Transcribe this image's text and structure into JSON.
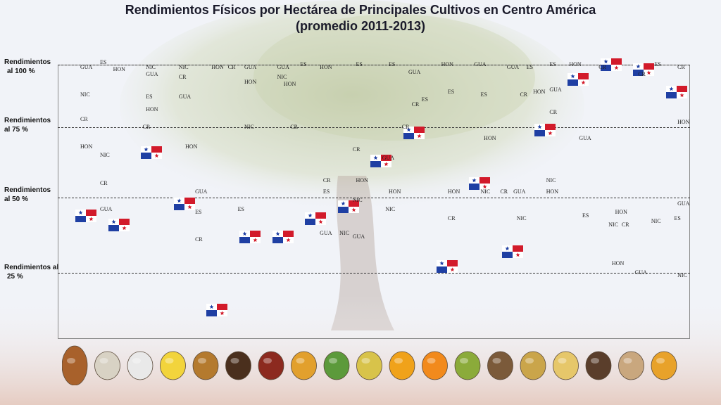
{
  "title_line1": "Rendimientos Físicos  por Hectárea de Principales Cultivos en Centro América",
  "title_line2": "(promedio 2011-2013)",
  "y_labels": [
    {
      "text_lines": [
        "Rendimientos",
        "al 100 %"
      ],
      "level": 100
    },
    {
      "text_lines": [
        "Rendimientos",
        "al 75 %"
      ],
      "level": 75
    },
    {
      "text_lines": [
        "Rendimientos",
        "al 50 %"
      ],
      "level": 50
    },
    {
      "text_lines": [
        "Rendimientos al",
        "25 %"
      ],
      "level": 25
    }
  ],
  "colors": {
    "flag_red": "#d21a2a",
    "flag_blue": "#1f3fa3",
    "grid_line": "#333333",
    "title": "#1a1a2a"
  },
  "footer_icons": [
    "cacao-icon",
    "rice-icon",
    "sugar-icon",
    "banana-icon",
    "beans-icon",
    "coffee-icon",
    "red-beans-icon",
    "pineapple-fruit-icon",
    "vegetables-icon",
    "corn-icon",
    "mango-icon",
    "orange-icon",
    "plantain-icon",
    "coconut-icon",
    "potato-icon",
    "melon-icon",
    "yam-icon",
    "cassava-icon",
    "pineapple-icon"
  ],
  "chart_data": {
    "type": "scatter",
    "title": "Rendimientos Físicos  por Hectárea de Principales Cultivos en Centro América (promedio 2011-2013)",
    "y_unit": "% del rendimiento máximo",
    "ylim": [
      0,
      100
    ],
    "reference_levels": [
      100,
      75,
      50,
      25
    ],
    "x_categories": 19,
    "flags": [
      {
        "x": 1,
        "y": 44
      },
      {
        "x": 2,
        "y": 41
      },
      {
        "x": 3,
        "y": 66
      },
      {
        "x": 4,
        "y": 48
      },
      {
        "x": 5,
        "y": 11
      },
      {
        "x": 6,
        "y": 37
      },
      {
        "x": 7,
        "y": 37
      },
      {
        "x": 8,
        "y": 43
      },
      {
        "x": 9,
        "y": 47
      },
      {
        "x": 10,
        "y": 63
      },
      {
        "x": 11,
        "y": 73
      },
      {
        "x": 12,
        "y": 27
      },
      {
        "x": 13,
        "y": 55
      },
      {
        "x": 14,
        "y": 32
      },
      {
        "x": 15,
        "y": 74
      },
      {
        "x": 16,
        "y": 94
      },
      {
        "x": 17,
        "y": 100
      },
      {
        "x": 18,
        "y": 98
      },
      {
        "x": 19,
        "y": 89
      }
    ],
    "country_labels": [
      {
        "t": "GUA",
        "x": 1,
        "y": 99
      },
      {
        "t": "ES",
        "x": 1.6,
        "y": 101
      },
      {
        "t": "HON",
        "x": 2.0,
        "y": 98
      },
      {
        "t": "NIC",
        "x": 1,
        "y": 88
      },
      {
        "t": "CR",
        "x": 1,
        "y": 78
      },
      {
        "t": "HON",
        "x": 1,
        "y": 68
      },
      {
        "t": "NIC",
        "x": 1.6,
        "y": 65
      },
      {
        "t": "CR",
        "x": 1.6,
        "y": 55
      },
      {
        "t": "GUA",
        "x": 1.6,
        "y": 46
      },
      {
        "t": "NIC",
        "x": 3,
        "y": 99
      },
      {
        "t": "GUA",
        "x": 3,
        "y": 96
      },
      {
        "t": "ES",
        "x": 3,
        "y": 87
      },
      {
        "t": "HON",
        "x": 3,
        "y": 82
      },
      {
        "t": "CR",
        "x": 2.9,
        "y": 75
      },
      {
        "t": "NIC",
        "x": 4,
        "y": 99
      },
      {
        "t": "CR",
        "x": 4,
        "y": 95
      },
      {
        "t": "GUA",
        "x": 4,
        "y": 87
      },
      {
        "t": "HON",
        "x": 4.2,
        "y": 68
      },
      {
        "t": "GUA",
        "x": 4.5,
        "y": 52
      },
      {
        "t": "ES",
        "x": 4.5,
        "y": 45
      },
      {
        "t": "CR",
        "x": 4.5,
        "y": 36
      },
      {
        "t": "HON",
        "x": 5,
        "y": 99
      },
      {
        "t": "CR",
        "x": 5.5,
        "y": 99
      },
      {
        "t": "ES",
        "x": 5.8,
        "y": 46
      },
      {
        "t": "GUA",
        "x": 6,
        "y": 99
      },
      {
        "t": "HON",
        "x": 6,
        "y": 93
      },
      {
        "t": "NIC",
        "x": 6,
        "y": 75
      },
      {
        "t": "GUA",
        "x": 7,
        "y": 99
      },
      {
        "t": "NIC",
        "x": 7,
        "y": 95
      },
      {
        "t": "HON",
        "x": 7.2,
        "y": 92
      },
      {
        "t": "CR",
        "x": 7.4,
        "y": 75
      },
      {
        "t": "ES",
        "x": 7.7,
        "y": 100
      },
      {
        "t": "HON",
        "x": 8.3,
        "y": 99
      },
      {
        "t": "CR",
        "x": 8.4,
        "y": 56
      },
      {
        "t": "ES",
        "x": 8.4,
        "y": 52
      },
      {
        "t": "GUA",
        "x": 8.3,
        "y": 38
      },
      {
        "t": "NIC",
        "x": 8.9,
        "y": 38
      },
      {
        "t": "GUA",
        "x": 9.3,
        "y": 37
      },
      {
        "t": "ES",
        "x": 9.4,
        "y": 100
      },
      {
        "t": "CR",
        "x": 9.3,
        "y": 67
      },
      {
        "t": "HON",
        "x": 9.4,
        "y": 56
      },
      {
        "t": "NIC",
        "x": 9.3,
        "y": 49
      },
      {
        "t": "ES",
        "x": 10.4,
        "y": 100
      },
      {
        "t": "GUA",
        "x": 10.2,
        "y": 64
      },
      {
        "t": "HON",
        "x": 10.4,
        "y": 52
      },
      {
        "t": "NIC",
        "x": 10.3,
        "y": 46
      },
      {
        "t": "CR",
        "x": 10.8,
        "y": 75
      },
      {
        "t": "GUA",
        "x": 11,
        "y": 97
      },
      {
        "t": "CR",
        "x": 11.1,
        "y": 84
      },
      {
        "t": "ES",
        "x": 11.4,
        "y": 86
      },
      {
        "t": "HON",
        "x": 12,
        "y": 100
      },
      {
        "t": "ES",
        "x": 12.2,
        "y": 89
      },
      {
        "t": "HON",
        "x": 12.2,
        "y": 52
      },
      {
        "t": "CR",
        "x": 12.2,
        "y": 43
      },
      {
        "t": "GUA",
        "x": 13,
        "y": 100
      },
      {
        "t": "ES",
        "x": 13.2,
        "y": 88
      },
      {
        "t": "HON",
        "x": 13.3,
        "y": 71
      },
      {
        "t": "NIC",
        "x": 13.2,
        "y": 52
      },
      {
        "t": "CR",
        "x": 13.8,
        "y": 52
      },
      {
        "t": "GUA",
        "x": 14.2,
        "y": 52
      },
      {
        "t": "GUA",
        "x": 14,
        "y": 99
      },
      {
        "t": "ES",
        "x": 14.6,
        "y": 99
      },
      {
        "t": "CR",
        "x": 14.4,
        "y": 88
      },
      {
        "t": "HON",
        "x": 14.8,
        "y": 89
      },
      {
        "t": "NIC",
        "x": 14.3,
        "y": 43
      },
      {
        "t": "HON",
        "x": 15.2,
        "y": 52
      },
      {
        "t": "NIC",
        "x": 15.2,
        "y": 56
      },
      {
        "t": "ES",
        "x": 15.3,
        "y": 100
      },
      {
        "t": "HON",
        "x": 15.9,
        "y": 100
      },
      {
        "t": "GUA",
        "x": 15.3,
        "y": 90
      },
      {
        "t": "CR",
        "x": 15.3,
        "y": 81
      },
      {
        "t": "GUA",
        "x": 16.2,
        "y": 71
      },
      {
        "t": "ES",
        "x": 16.3,
        "y": 44
      },
      {
        "t": "CR",
        "x": 16.8,
        "y": 99
      },
      {
        "t": "HON",
        "x": 17.3,
        "y": 45
      },
      {
        "t": "NIC",
        "x": 17.1,
        "y": 41
      },
      {
        "t": "CR",
        "x": 17.5,
        "y": 41
      },
      {
        "t": "HON",
        "x": 17.2,
        "y": 28
      },
      {
        "t": "GUA",
        "x": 17.9,
        "y": 25
      },
      {
        "t": "CR",
        "x": 18,
        "y": 96
      },
      {
        "t": "ES",
        "x": 18.5,
        "y": 100
      },
      {
        "t": "CR",
        "x": 19.2,
        "y": 99
      },
      {
        "t": "HON",
        "x": 19.2,
        "y": 77
      },
      {
        "t": "GUA",
        "x": 19.2,
        "y": 48
      },
      {
        "t": "ES",
        "x": 19.1,
        "y": 43
      },
      {
        "t": "NIC",
        "x": 18.4,
        "y": 42
      },
      {
        "t": "NIC",
        "x": 19.2,
        "y": 24
      }
    ]
  }
}
